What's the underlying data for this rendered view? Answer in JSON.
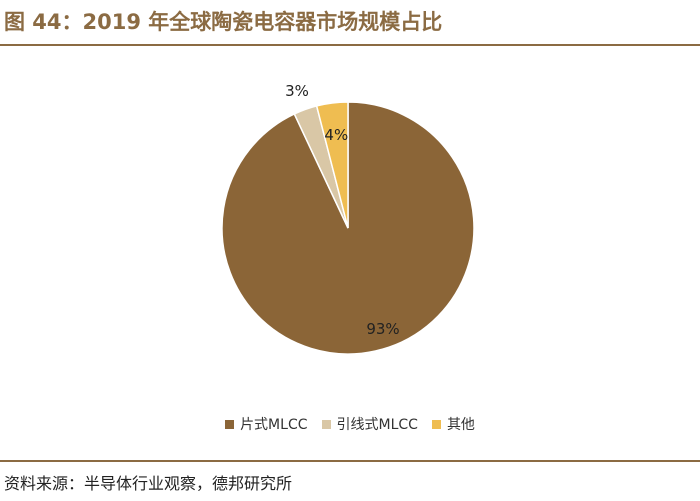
{
  "title": "图 44：2019 年全球陶瓷电容器市场规模占比",
  "source": "资料来源：半导体行业观察，德邦研究所",
  "colors": {
    "accent": "#8b6b43",
    "slice_1": "#8b6537",
    "slice_2": "#d9c7a6",
    "slice_3": "#efbd51"
  },
  "chart_data": {
    "type": "pie",
    "title": "",
    "legend_position": "bottom",
    "slices": [
      {
        "name": "片式MLCC",
        "value": 93,
        "label": "93%",
        "color": "#8b6537"
      },
      {
        "name": "引线式MLCC",
        "value": 3,
        "label": "3%",
        "color": "#d9c7a6"
      },
      {
        "name": "其他",
        "value": 4,
        "label": "4%",
        "color": "#efbd51"
      }
    ]
  }
}
